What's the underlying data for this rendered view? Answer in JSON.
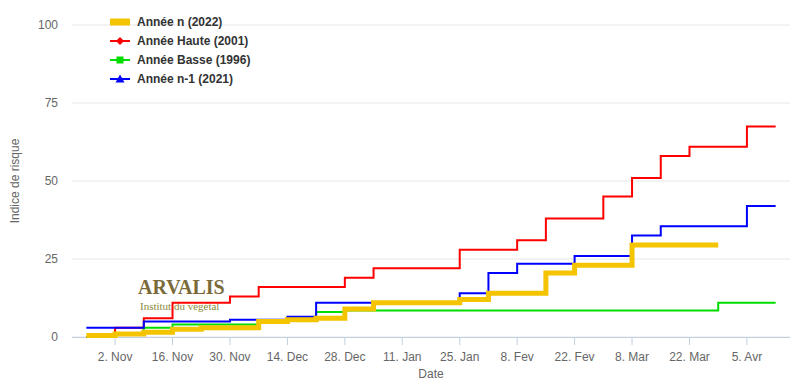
{
  "chart_data": {
    "type": "line",
    "x_label": "Date",
    "y_label": "Indice de risque",
    "categories": [
      null,
      "2. Nov",
      null,
      "16. Nov",
      null,
      "30. Nov",
      null,
      "14. Dec",
      null,
      "28. Dec",
      null,
      "11. Jan",
      null,
      "25. Jan",
      null,
      "8. Fev",
      null,
      "22. Fev",
      null,
      "8. Mar",
      null,
      "22. Mar",
      null,
      "5. Avr",
      null
    ],
    "series": [
      {
        "name": "Année n (2022)",
        "color": "#f5c400",
        "line_style": "thick",
        "values": [
          0.5,
          1,
          1.5,
          2.5,
          3,
          3,
          5,
          5.5,
          6,
          9,
          11,
          11,
          11,
          12,
          14,
          14,
          20.5,
          23,
          23,
          29.5,
          29.5,
          29.5,
          29.5,
          null,
          null
        ]
      },
      {
        "name": "Année Haute (2001)",
        "color": "#ff0000",
        "marker": "diamond",
        "line_style": "solid",
        "values": [
          0,
          3,
          6,
          11,
          11,
          13,
          16,
          16,
          16,
          19,
          22,
          22,
          22,
          28,
          28,
          31,
          38,
          38,
          45,
          51,
          58,
          61,
          61,
          67.5,
          67.5
        ]
      },
      {
        "name": "Année Basse (1996)",
        "color": "#00dd00",
        "marker": "square",
        "line_style": "solid",
        "values": [
          0,
          1,
          3,
          4,
          4,
          4,
          5,
          6,
          8,
          8.5,
          8.5,
          8.5,
          8.5,
          8.5,
          8.5,
          8.5,
          8.5,
          8.5,
          8.5,
          8.5,
          8.5,
          8.5,
          11,
          11,
          11
        ]
      },
      {
        "name": "Année n-1 (2021)",
        "color": "#0000ff",
        "marker": "triangle",
        "line_style": "solid",
        "values": [
          3,
          3,
          5,
          5,
          5,
          5.5,
          5.5,
          6.5,
          11,
          11,
          11,
          11,
          11,
          14,
          20.5,
          23.5,
          23.5,
          26,
          26,
          32.5,
          35.5,
          35.5,
          35.5,
          42,
          42
        ]
      }
    ],
    "ylim": [
      0,
      100
    ],
    "yticks": [
      0,
      25,
      50,
      75,
      100
    ],
    "grid": true,
    "legend": "top-left",
    "annotations": [
      {
        "text": "ARVALIS"
      },
      {
        "text": "Institut du végétal"
      }
    ]
  }
}
